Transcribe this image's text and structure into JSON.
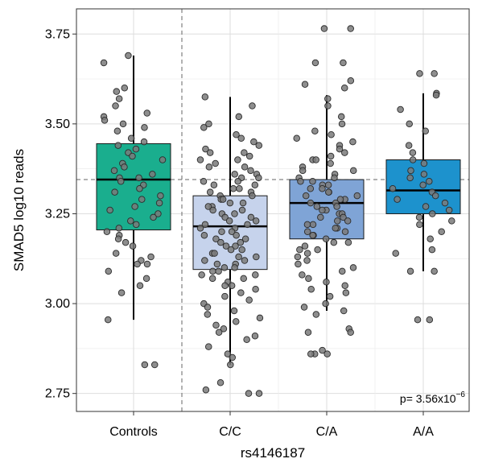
{
  "chart_data": {
    "type": "box",
    "xlabel": "rs4146187",
    "ylabel": "SMAD5 log10 reads",
    "ylim": [
      2.7,
      3.82
    ],
    "yticks": [
      2.75,
      3.0,
      3.25,
      3.5,
      3.75
    ],
    "ytick_labels": [
      "2.75",
      "3.00",
      "3.25",
      "3.50",
      "3.75"
    ],
    "categories": [
      "Controls",
      "C/C",
      "C/A",
      "A/A"
    ],
    "colors": [
      "#1aae8e",
      "#c6d3ec",
      "#7fa4d6",
      "#1d92cd"
    ],
    "boxes": [
      {
        "name": "Controls",
        "q1": 3.205,
        "median": 3.345,
        "q3": 3.445,
        "whisker_low": 2.955,
        "whisker_high": 3.69
      },
      {
        "name": "C/C",
        "q1": 3.095,
        "median": 3.215,
        "q3": 3.3,
        "whisker_low": 2.83,
        "whisker_high": 3.575
      },
      {
        "name": "C/A",
        "q1": 3.18,
        "median": 3.28,
        "q3": 3.345,
        "whisker_low": 2.98,
        "whisker_high": 3.58
      },
      {
        "name": "A/A",
        "q1": 3.25,
        "median": 3.315,
        "q3": 3.4,
        "whisker_low": 3.09,
        "whisker_high": 3.585
      }
    ],
    "points": [
      {
        "group": "Controls",
        "values": [
          3.69,
          3.67,
          3.6,
          3.59,
          3.57,
          3.55,
          3.53,
          3.52,
          3.51,
          3.5,
          3.49,
          3.48,
          3.46,
          3.45,
          3.44,
          3.43,
          3.42,
          3.41,
          3.4,
          3.39,
          3.38,
          3.37,
          3.36,
          3.35,
          3.35,
          3.34,
          3.33,
          3.32,
          3.31,
          3.3,
          3.29,
          3.28,
          3.27,
          3.26,
          3.25,
          3.24,
          3.23,
          3.22,
          3.21,
          3.2,
          3.19,
          3.18,
          3.17,
          3.16,
          3.14,
          3.13,
          3.12,
          3.11,
          3.11,
          3.09,
          3.07,
          3.05,
          3.03,
          2.955,
          2.83,
          2.83
        ]
      },
      {
        "group": "C/C",
        "values": [
          3.575,
          3.55,
          3.52,
          3.5,
          3.49,
          3.47,
          3.46,
          3.45,
          3.44,
          3.43,
          3.42,
          3.42,
          3.41,
          3.4,
          3.4,
          3.39,
          3.38,
          3.38,
          3.37,
          3.36,
          3.36,
          3.35,
          3.35,
          3.34,
          3.34,
          3.33,
          3.33,
          3.32,
          3.32,
          3.31,
          3.31,
          3.3,
          3.3,
          3.29,
          3.29,
          3.28,
          3.28,
          3.27,
          3.27,
          3.26,
          3.26,
          3.25,
          3.25,
          3.24,
          3.24,
          3.23,
          3.23,
          3.22,
          3.22,
          3.21,
          3.21,
          3.2,
          3.2,
          3.19,
          3.19,
          3.18,
          3.18,
          3.17,
          3.17,
          3.16,
          3.16,
          3.15,
          3.15,
          3.14,
          3.14,
          3.13,
          3.13,
          3.12,
          3.12,
          3.11,
          3.11,
          3.1,
          3.1,
          3.09,
          3.09,
          3.08,
          3.08,
          3.07,
          3.07,
          3.06,
          3.05,
          3.05,
          3.04,
          3.03,
          3.02,
          3.01,
          3.0,
          2.99,
          2.98,
          2.97,
          2.96,
          2.95,
          2.94,
          2.93,
          2.92,
          2.91,
          2.9,
          2.88,
          2.86,
          2.85,
          2.83,
          2.78,
          2.76,
          2.75,
          2.75
        ]
      },
      {
        "group": "C/A",
        "values": [
          3.765,
          3.765,
          3.67,
          3.67,
          3.62,
          3.61,
          3.6,
          3.57,
          3.55,
          3.52,
          3.5,
          3.48,
          3.47,
          3.46,
          3.45,
          3.44,
          3.43,
          3.42,
          3.41,
          3.4,
          3.4,
          3.39,
          3.38,
          3.37,
          3.37,
          3.36,
          3.35,
          3.35,
          3.34,
          3.34,
          3.33,
          3.33,
          3.32,
          3.32,
          3.31,
          3.31,
          3.3,
          3.3,
          3.29,
          3.29,
          3.28,
          3.28,
          3.27,
          3.27,
          3.26,
          3.26,
          3.25,
          3.25,
          3.24,
          3.24,
          3.23,
          3.23,
          3.22,
          3.22,
          3.21,
          3.21,
          3.2,
          3.2,
          3.19,
          3.19,
          3.18,
          3.17,
          3.17,
          3.16,
          3.15,
          3.15,
          3.14,
          3.13,
          3.12,
          3.11,
          3.1,
          3.09,
          3.08,
          3.07,
          3.06,
          3.05,
          3.04,
          3.03,
          3.02,
          3.0,
          2.99,
          2.98,
          2.97,
          2.93,
          2.92,
          2.92,
          2.87,
          2.86,
          2.86,
          2.86
        ]
      },
      {
        "group": "A/A",
        "values": [
          3.64,
          3.64,
          3.585,
          3.58,
          3.54,
          3.5,
          3.48,
          3.44,
          3.42,
          3.4,
          3.39,
          3.37,
          3.36,
          3.35,
          3.34,
          3.33,
          3.32,
          3.31,
          3.3,
          3.29,
          3.28,
          3.27,
          3.26,
          3.25,
          3.24,
          3.23,
          3.22,
          3.2,
          3.18,
          3.15,
          3.14,
          3.09,
          3.09,
          2.955,
          2.955
        ]
      }
    ],
    "reference_line_y": 3.345,
    "separator_after_category": "Controls",
    "grid": true,
    "annotation": {
      "text": "p= 3.56x10",
      "superscript": "−6"
    }
  }
}
